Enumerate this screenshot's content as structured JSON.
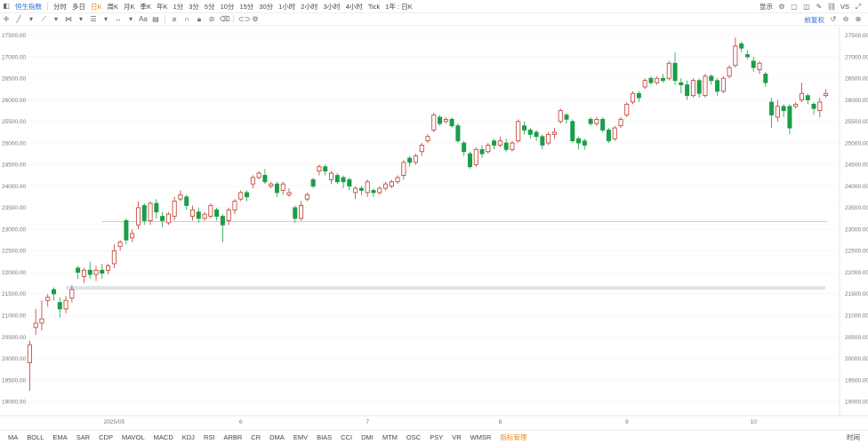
{
  "topbar": {
    "index_name": "恒生指数",
    "periods": [
      "分时",
      "多日",
      "日K",
      "周K",
      "月K",
      "季K",
      "年K",
      "1分",
      "3分",
      "5分",
      "10分",
      "15分",
      "30分",
      "1小时",
      "2小时",
      "3小时",
      "4小时",
      "Tick",
      "1年 : 日K"
    ],
    "active_period": "日K",
    "display_label": "显示",
    "vs_label": "VS"
  },
  "toolbar": {
    "right_label": "前复权"
  },
  "bottombar": {
    "indicators": [
      "MA",
      "BOLL",
      "EMA",
      "SAR",
      "CDP",
      "MAVOL",
      "MACD",
      "KDJ",
      "RSI",
      "ARBR",
      "CR",
      "DMA",
      "EMV",
      "BIAS",
      "CCI",
      "DMI",
      "MTM",
      "OSC",
      "PSY",
      "VR",
      "WMSR",
      "指标管理"
    ],
    "active_indicator": "指标管理",
    "right_label": "时间"
  },
  "colors": {
    "up": "#c0392b",
    "down": "#1a9e49",
    "grid": "#f3f3f3",
    "band": "#dbe3ec",
    "line": "#bfbfbf"
  },
  "chart_data": {
    "type": "candlestick",
    "ylim": [
      18800,
      27700
    ],
    "ticks": [
      19000,
      19500,
      20000,
      20500,
      21000,
      21500,
      22000,
      22500,
      23000,
      23500,
      24000,
      24500,
      25000,
      25500,
      26000,
      26500,
      27000,
      27500
    ],
    "tick_labels": [
      "19000.00",
      "19500.00",
      "20000.00",
      "20500.00",
      "21000.00",
      "21500.00",
      "22000.00",
      "22500.00",
      "23000.00",
      "23500.00",
      "24000.00",
      "24500.00",
      "25000.00",
      "25500.00",
      "26000.00",
      "26500.00",
      "27000.00",
      "27500.00"
    ],
    "x_labels": [
      {
        "index": 14,
        "label": "2025/05"
      },
      {
        "index": 35,
        "label": "6"
      },
      {
        "index": 56,
        "label": "7"
      },
      {
        "index": 78,
        "label": "8"
      },
      {
        "index": 99,
        "label": "9"
      },
      {
        "index": 120,
        "label": "10"
      }
    ],
    "support_band": [
      21620,
      21680
    ],
    "reference_line": 23180,
    "candles": [
      [
        19900,
        20320,
        19250,
        20420
      ],
      [
        20720,
        20820,
        20550,
        21150
      ],
      [
        20820,
        20920,
        20650,
        21350
      ],
      [
        21350,
        21420,
        21200,
        21500
      ],
      [
        21600,
        21500,
        21350,
        21650
      ],
      [
        21300,
        21150,
        20950,
        21420
      ],
      [
        21150,
        21350,
        21050,
        21450
      ],
      [
        21400,
        21600,
        21300,
        21700
      ],
      [
        22100,
        22000,
        21850,
        22150
      ],
      [
        21900,
        22050,
        21750,
        22100
      ],
      [
        22050,
        21950,
        21850,
        22250
      ],
      [
        21950,
        22050,
        21800,
        22150
      ],
      [
        22050,
        21980,
        21850,
        22200
      ],
      [
        22050,
        22150,
        21950,
        22200
      ],
      [
        22200,
        22500,
        22100,
        22650
      ],
      [
        22600,
        22700,
        22500,
        22750
      ],
      [
        23200,
        22750,
        22650,
        23250
      ],
      [
        22800,
        22900,
        22700,
        23000
      ],
      [
        23100,
        23500,
        23000,
        23650
      ],
      [
        23550,
        23200,
        23100,
        23600
      ],
      [
        23200,
        23600,
        23100,
        23650
      ],
      [
        23600,
        23400,
        23250,
        23700
      ],
      [
        23300,
        23200,
        23050,
        23400
      ],
      [
        23150,
        23350,
        23100,
        23400
      ],
      [
        23300,
        23650,
        23200,
        23750
      ],
      [
        23700,
        23800,
        23650,
        23900
      ],
      [
        23750,
        23550,
        23450,
        23800
      ],
      [
        23300,
        23450,
        23200,
        23550
      ],
      [
        23400,
        23250,
        23150,
        23500
      ],
      [
        23250,
        23350,
        23200,
        23400
      ],
      [
        23300,
        23550,
        23250,
        23600
      ],
      [
        23450,
        23300,
        23200,
        23500
      ],
      [
        23300,
        23100,
        22700,
        23350
      ],
      [
        23200,
        23450,
        23100,
        23500
      ],
      [
        23450,
        23650,
        23350,
        23700
      ],
      [
        23700,
        23850,
        23650,
        23900
      ],
      [
        23850,
        23750,
        23650,
        23900
      ],
      [
        24050,
        24200,
        23950,
        24250
      ],
      [
        24200,
        24300,
        24150,
        24350
      ],
      [
        24250,
        24100,
        24050,
        24400
      ],
      [
        24000,
        24050,
        23950,
        24100
      ],
      [
        24050,
        23850,
        23750,
        24100
      ],
      [
        23900,
        24050,
        23800,
        24100
      ],
      [
        23800,
        23850,
        23750,
        23950
      ],
      [
        23500,
        23250,
        23150,
        23550
      ],
      [
        23250,
        23550,
        23200,
        23650
      ],
      [
        23700,
        23800,
        23650,
        23850
      ],
      [
        24150,
        24000,
        23950,
        24200
      ],
      [
        24350,
        24450,
        24250,
        24500
      ],
      [
        24450,
        24350,
        24250,
        24500
      ],
      [
        24150,
        24300,
        24050,
        24350
      ],
      [
        24250,
        24100,
        24050,
        24300
      ],
      [
        24200,
        24100,
        23950,
        24250
      ],
      [
        24150,
        24000,
        23900,
        24200
      ],
      [
        23850,
        23950,
        23700,
        24000
      ],
      [
        23950,
        23900,
        23800,
        24000
      ],
      [
        23850,
        24100,
        23750,
        24150
      ],
      [
        23900,
        23850,
        23750,
        23950
      ],
      [
        23850,
        23950,
        23800,
        24000
      ],
      [
        23950,
        24050,
        23900,
        24100
      ],
      [
        24000,
        24100,
        23950,
        24150
      ],
      [
        24100,
        24200,
        24050,
        24250
      ],
      [
        24250,
        24550,
        24150,
        24600
      ],
      [
        24650,
        24550,
        24450,
        24700
      ],
      [
        24550,
        24700,
        24500,
        24750
      ],
      [
        24800,
        24950,
        24700,
        25000
      ],
      [
        25050,
        25150,
        25000,
        25200
      ],
      [
        25300,
        25650,
        25250,
        25700
      ],
      [
        25600,
        25450,
        25400,
        25650
      ],
      [
        25500,
        25550,
        25450,
        25600
      ],
      [
        25550,
        25400,
        25350,
        25600
      ],
      [
        25400,
        25050,
        25000,
        25450
      ],
      [
        25000,
        24800,
        24700,
        25050
      ],
      [
        24750,
        24450,
        24400,
        24800
      ],
      [
        24500,
        24850,
        24450,
        24900
      ],
      [
        24850,
        24750,
        24650,
        24950
      ],
      [
        24800,
        24950,
        24750,
        25000
      ],
      [
        25050,
        24950,
        24850,
        25100
      ],
      [
        24950,
        25050,
        24900,
        25150
      ],
      [
        25000,
        24850,
        24800,
        25100
      ],
      [
        24850,
        25000,
        24800,
        25050
      ],
      [
        25050,
        25500,
        25000,
        25550
      ],
      [
        25400,
        25300,
        25200,
        25500
      ],
      [
        25300,
        25200,
        25100,
        25350
      ],
      [
        25250,
        25150,
        25050,
        25300
      ],
      [
        25150,
        24950,
        24850,
        25200
      ],
      [
        25000,
        25200,
        24950,
        25250
      ],
      [
        25200,
        25250,
        25100,
        25350
      ],
      [
        25500,
        25750,
        25450,
        25800
      ],
      [
        25650,
        25550,
        25450,
        25700
      ],
      [
        25500,
        25050,
        25000,
        25550
      ],
      [
        25100,
        25000,
        24850,
        25150
      ],
      [
        25050,
        24950,
        24850,
        25100
      ],
      [
        25550,
        25450,
        25400,
        25600
      ],
      [
        25450,
        25550,
        25400,
        25600
      ],
      [
        25550,
        25300,
        25250,
        25600
      ],
      [
        25300,
        25050,
        25000,
        25350
      ],
      [
        25100,
        25350,
        25050,
        25400
      ],
      [
        25400,
        25550,
        25350,
        25600
      ],
      [
        25650,
        25900,
        25600,
        25950
      ],
      [
        25950,
        26150,
        25900,
        26200
      ],
      [
        26150,
        26050,
        25950,
        26200
      ],
      [
        26300,
        26450,
        26250,
        26500
      ],
      [
        26500,
        26400,
        26350,
        26550
      ],
      [
        26400,
        26500,
        26350,
        26550
      ],
      [
        26500,
        26450,
        26400,
        26600
      ],
      [
        26500,
        26850,
        26450,
        26900
      ],
      [
        26850,
        26450,
        26350,
        27100
      ],
      [
        26400,
        26350,
        26150,
        26500
      ],
      [
        26350,
        26100,
        26000,
        26450
      ],
      [
        26100,
        26450,
        26050,
        26500
      ],
      [
        26450,
        26150,
        26050,
        26500
      ],
      [
        26100,
        26550,
        26050,
        26600
      ],
      [
        26550,
        26450,
        26350,
        26600
      ],
      [
        26450,
        26200,
        26100,
        26500
      ],
      [
        26200,
        26500,
        26150,
        26550
      ],
      [
        26550,
        26750,
        26500,
        26800
      ],
      [
        26800,
        27250,
        26750,
        27450
      ],
      [
        27300,
        27200,
        27100,
        27350
      ],
      [
        27050,
        27000,
        26950,
        27150
      ],
      [
        26900,
        26750,
        26650,
        27000
      ],
      [
        26700,
        26850,
        26600,
        26900
      ],
      [
        26600,
        26400,
        26300,
        26650
      ],
      [
        25950,
        25650,
        25350,
        26050
      ],
      [
        25600,
        25850,
        25500,
        26000
      ],
      [
        25850,
        25750,
        25600,
        25900
      ],
      [
        25850,
        25350,
        25200,
        25900
      ],
      [
        25850,
        25900,
        25800,
        25950
      ],
      [
        26000,
        26150,
        25950,
        26400
      ],
      [
        26100,
        26000,
        25900,
        26150
      ],
      [
        25900,
        25800,
        25650,
        25950
      ],
      [
        25750,
        25950,
        25600,
        26050
      ],
      [
        26100,
        26150,
        26050,
        26250
      ]
    ]
  }
}
